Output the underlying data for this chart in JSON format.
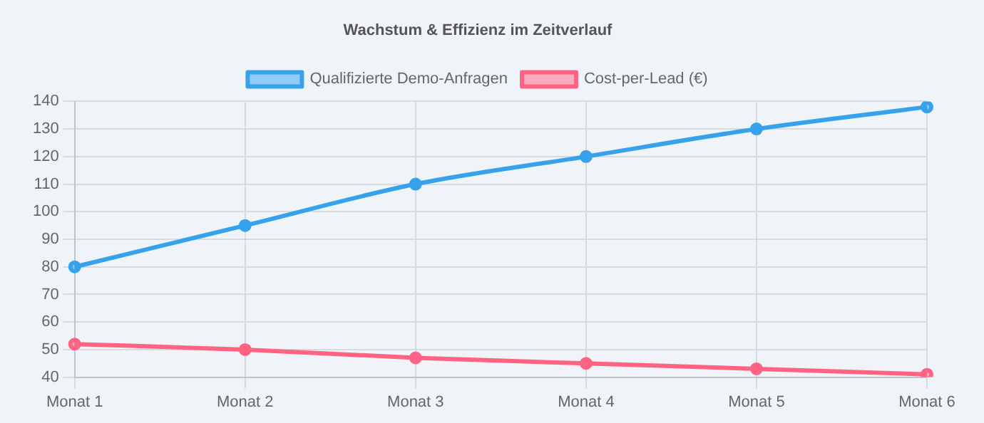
{
  "chart_data": {
    "type": "line",
    "title": "Wachstum & Effizienz im Zeitverlauf",
    "categories": [
      "Monat 1",
      "Monat 2",
      "Monat 3",
      "Monat 4",
      "Monat 5",
      "Monat 6"
    ],
    "series": [
      {
        "name": "Qualifizierte Demo-Anfragen",
        "color": "#36a2eb",
        "values": [
          80,
          95,
          110,
          120,
          130,
          138
        ]
      },
      {
        "name": "Cost-per-Lead (€)",
        "color": "#ff6384",
        "values": [
          52,
          50,
          47,
          45,
          43,
          41
        ]
      }
    ],
    "ylim": [
      40,
      140
    ],
    "yticks": [
      40,
      50,
      60,
      70,
      80,
      90,
      100,
      110,
      120,
      130,
      140
    ],
    "grid": true,
    "legend": "top",
    "marker": "circle",
    "line_style": "solid"
  }
}
